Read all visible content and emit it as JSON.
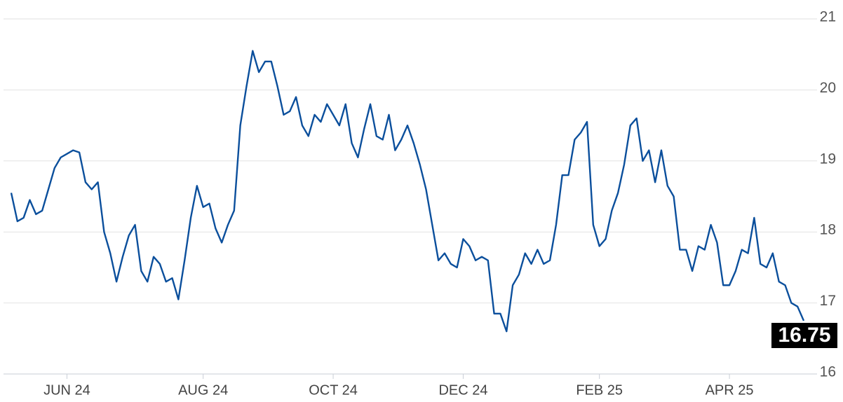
{
  "chart_data": {
    "type": "line",
    "color": "#0b4f9c",
    "grid": true,
    "categories": [
      null,
      null,
      null,
      null,
      null,
      null,
      null,
      null,
      null,
      "JUN 24",
      null,
      null,
      null,
      null,
      null,
      null,
      null,
      null,
      null,
      null,
      null,
      null,
      null,
      null,
      null,
      null,
      null,
      null,
      null,
      null,
      null,
      "AUG 24",
      null,
      null,
      null,
      null,
      null,
      null,
      null,
      null,
      null,
      null,
      null,
      null,
      null,
      null,
      null,
      null,
      null,
      null,
      null,
      null,
      "OCT 24",
      null,
      null,
      null,
      null,
      null,
      null,
      null,
      null,
      null,
      null,
      null,
      null,
      null,
      null,
      null,
      null,
      null,
      null,
      null,
      null,
      "DEC 24",
      null,
      null,
      null,
      null,
      null,
      null,
      null,
      null,
      null,
      null,
      null,
      null,
      null,
      null,
      null,
      null,
      null,
      null,
      null,
      null,
      null,
      "FEB 25",
      null,
      null,
      null,
      null,
      null,
      null,
      null,
      null,
      null,
      null,
      null,
      null,
      null,
      null,
      null,
      null,
      null,
      null,
      null,
      null,
      "APR 25",
      null,
      null,
      null,
      null,
      null,
      null,
      null,
      null,
      null,
      null,
      null,
      null
    ],
    "values": [
      18.55,
      18.15,
      18.2,
      18.45,
      18.25,
      18.3,
      18.6,
      18.9,
      19.05,
      19.1,
      19.15,
      19.12,
      18.7,
      18.6,
      18.7,
      18.0,
      17.7,
      17.3,
      17.65,
      17.95,
      18.1,
      17.45,
      17.3,
      17.65,
      17.55,
      17.3,
      17.35,
      17.05,
      17.6,
      18.2,
      18.65,
      18.35,
      18.4,
      18.05,
      17.85,
      18.1,
      18.3,
      19.5,
      20.05,
      20.55,
      20.25,
      20.4,
      20.4,
      20.05,
      19.65,
      19.7,
      19.9,
      19.5,
      19.35,
      19.65,
      19.55,
      19.8,
      19.65,
      19.5,
      19.8,
      19.25,
      19.05,
      19.45,
      19.8,
      19.35,
      19.3,
      19.65,
      19.15,
      19.3,
      19.5,
      19.25,
      18.95,
      18.6,
      18.1,
      17.6,
      17.7,
      17.55,
      17.5,
      17.9,
      17.8,
      17.6,
      17.65,
      17.6,
      16.85,
      16.85,
      16.6,
      17.25,
      17.4,
      17.7,
      17.55,
      17.75,
      17.55,
      17.6,
      18.1,
      18.8,
      18.8,
      19.3,
      19.4,
      19.55,
      18.1,
      17.8,
      17.9,
      18.3,
      18.55,
      18.95,
      19.5,
      19.6,
      19.0,
      19.15,
      18.7,
      19.15,
      18.65,
      18.5,
      17.75,
      17.75,
      17.45,
      17.8,
      17.75,
      18.1,
      17.85,
      17.25,
      17.25,
      17.45,
      17.75,
      17.7,
      18.2,
      17.55,
      17.5,
      17.7,
      17.3,
      17.25,
      17.0,
      16.95,
      16.75
    ],
    "ylim": [
      16,
      21
    ],
    "yticks": [
      16,
      17,
      18,
      19,
      20,
      21
    ]
  }
}
